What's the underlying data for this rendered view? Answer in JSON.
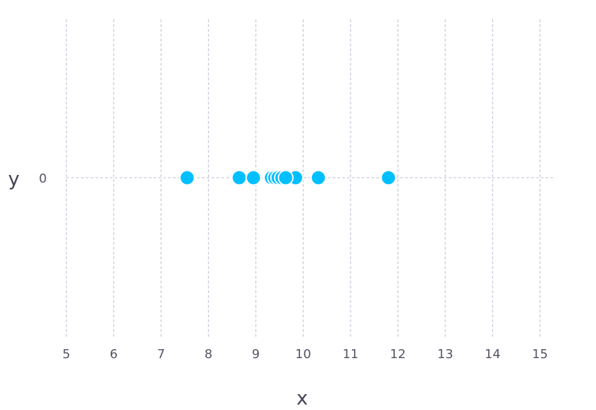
{
  "chart_data": {
    "type": "scatter",
    "title": "",
    "xlabel": "x",
    "ylabel": "y",
    "xlim": [
      5,
      15.3
    ],
    "x_ticks": [
      "5",
      "6",
      "7",
      "8",
      "9",
      "10",
      "11",
      "12",
      "13",
      "14",
      "15"
    ],
    "y_ticks": [
      "0"
    ],
    "grid": true,
    "series": [
      {
        "color": "#00bfff",
        "points": [
          {
            "x": 7.55,
            "y": 0
          },
          {
            "x": 8.65,
            "y": 0
          },
          {
            "x": 8.95,
            "y": 0
          },
          {
            "x": 9.33,
            "y": 0
          },
          {
            "x": 9.4,
            "y": 0
          },
          {
            "x": 9.47,
            "y": 0
          },
          {
            "x": 9.55,
            "y": 0
          },
          {
            "x": 9.72,
            "y": 0
          },
          {
            "x": 9.78,
            "y": 0
          },
          {
            "x": 9.84,
            "y": 0
          },
          {
            "x": 9.63,
            "y": 0
          },
          {
            "x": 10.32,
            "y": 0
          },
          {
            "x": 11.8,
            "y": 0
          }
        ]
      }
    ]
  }
}
